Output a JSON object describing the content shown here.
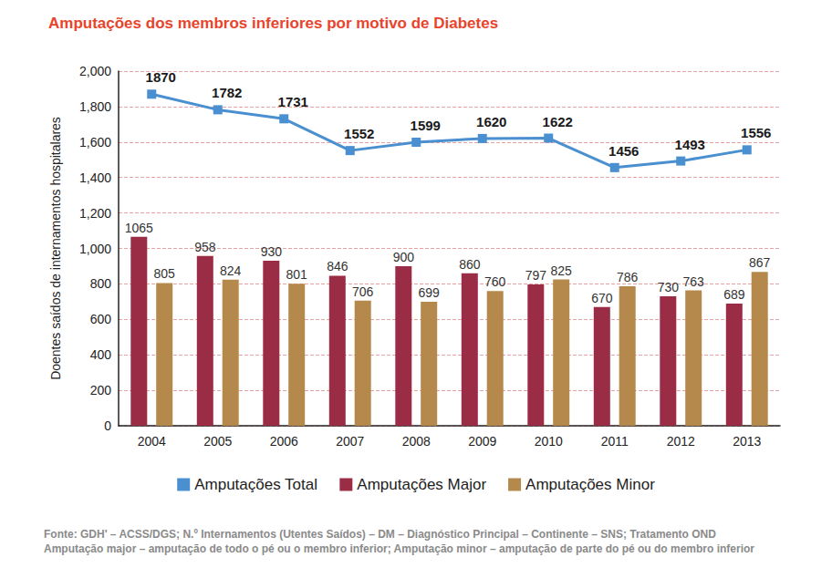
{
  "chart_data": {
    "type": "bar",
    "title": "Amputações dos membros inferiores por motivo de Diabetes",
    "y_label": "Doentes saídos de internamentos hospitalares",
    "categories": [
      "2004",
      "2005",
      "2006",
      "2007",
      "2008",
      "2009",
      "2010",
      "2011",
      "2012",
      "2013"
    ],
    "series": [
      {
        "name": "Amputações Total",
        "type": "line",
        "marker": "square",
        "color": "#4a8fd0",
        "values": [
          1870,
          1782,
          1731,
          1552,
          1599,
          1620,
          1622,
          1456,
          1493,
          1556
        ]
      },
      {
        "name": "Amputações Major",
        "type": "bar",
        "color": "#9a2c45",
        "values": [
          1065,
          958,
          930,
          846,
          900,
          860,
          797,
          670,
          730,
          689
        ]
      },
      {
        "name": "Amputações Minor",
        "type": "bar",
        "color": "#b5894b",
        "values": [
          805,
          824,
          801,
          706,
          699,
          760,
          825,
          786,
          763,
          867
        ]
      }
    ],
    "ylim": [
      0,
      2000
    ],
    "yticks": [
      0,
      200,
      400,
      600,
      800,
      1000,
      1200,
      1400,
      1600,
      1800,
      2000
    ],
    "grid": true,
    "legend": "bottom",
    "data_labels": true,
    "annotations": [
      "Fonte: GDH' – ACSS/DGS; N.º Internamentos (Utentes Saídos) – DM – Diagnóstico Principal – Continente – SNS; Tratamento OND",
      "Amputação major – amputação de todo o pé ou o membro inferior; Amputação minor – amputação de parte do pé ou do membro inferior"
    ]
  }
}
